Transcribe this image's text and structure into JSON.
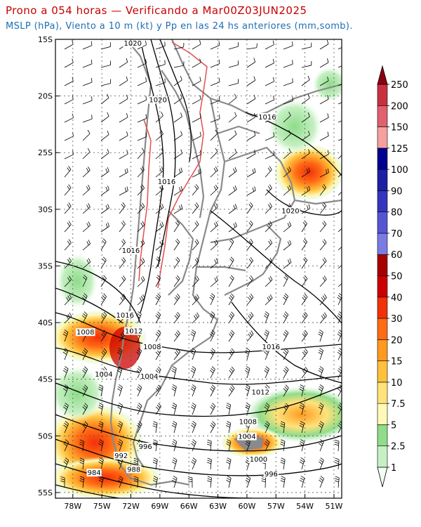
{
  "header": {
    "title": "Prono a 054 horas — Verificando a Mar00Z03JUN2025",
    "subtitle": "MSLP (hPa), Viento a 10 m (kt) y Pp en las 24 hs anteriores (mm,somb)."
  },
  "map": {
    "lon_ticks": [
      "78W",
      "75W",
      "72W",
      "69W",
      "66W",
      "63W",
      "60W",
      "57W",
      "54W",
      "51W"
    ],
    "lon_values": [
      -78,
      -75,
      -72,
      -69,
      -66,
      -63,
      -60,
      -57,
      -54,
      -51
    ],
    "lat_ticks": [
      "15S",
      "20S",
      "25S",
      "30S",
      "35S",
      "40S",
      "45S",
      "50S",
      "55S"
    ],
    "lat_values": [
      -15,
      -20,
      -25,
      -30,
      -35,
      -40,
      -45,
      -50,
      -55
    ],
    "lon_range": [
      -79.8,
      -50.2
    ],
    "lat_range": [
      -55.5,
      -15
    ],
    "grid": true,
    "isobar_labels": [
      {
        "text": "1020",
        "lon": -71.8,
        "lat": -15.5
      },
      {
        "text": "1020",
        "lon": -69.2,
        "lat": -20.5
      },
      {
        "text": "1016",
        "lon": -57.9,
        "lat": -22.0
      },
      {
        "text": "1016",
        "lon": -68.3,
        "lat": -27.7
      },
      {
        "text": "1020",
        "lon": -55.5,
        "lat": -30.3
      },
      {
        "text": "1016",
        "lon": -72.0,
        "lat": -33.8
      },
      {
        "text": "1016",
        "lon": -72.6,
        "lat": -39.5
      },
      {
        "text": "1012",
        "lon": -71.7,
        "lat": -40.9
      },
      {
        "text": "1008",
        "lon": -76.7,
        "lat": -41.0
      },
      {
        "text": "1008",
        "lon": -69.8,
        "lat": -42.3
      },
      {
        "text": "1016",
        "lon": -57.5,
        "lat": -42.3
      },
      {
        "text": "1004",
        "lon": -74.8,
        "lat": -44.7
      },
      {
        "text": "1004",
        "lon": -70.1,
        "lat": -44.9
      },
      {
        "text": "1012",
        "lon": -58.6,
        "lat": -46.3
      },
      {
        "text": "1008",
        "lon": -59.9,
        "lat": -48.9
      },
      {
        "text": "1004",
        "lon": -60.0,
        "lat": -50.2
      },
      {
        "text": "996",
        "lon": -70.5,
        "lat": -51.1
      },
      {
        "text": "1000",
        "lon": -58.8,
        "lat": -52.2
      },
      {
        "text": "992",
        "lon": -73.0,
        "lat": -51.9
      },
      {
        "text": "988",
        "lon": -71.7,
        "lat": -53.1
      },
      {
        "text": "984",
        "lon": -75.8,
        "lat": -53.4
      },
      {
        "text": "996",
        "lon": -57.5,
        "lat": -53.5
      }
    ]
  },
  "colorbar": {
    "levels": [
      "1",
      "2.5",
      "5",
      "7.5",
      "10",
      "15",
      "20",
      "30",
      "40",
      "50",
      "60",
      "70",
      "80",
      "90",
      "100",
      "125",
      "150",
      "200",
      "250"
    ],
    "colors": [
      "#f3fff2",
      "#c6f0c3",
      "#8fdc8a",
      "#fffab8",
      "#ffe27a",
      "#ffc03c",
      "#ff9a1e",
      "#ff6a14",
      "#f2300a",
      "#cc0000",
      "#a80000",
      "#7b7be6",
      "#5555d4",
      "#3535be",
      "#1e1ea5",
      "#000090",
      "#f6a0a0",
      "#e06070",
      "#c83040",
      "#8c0010"
    ]
  },
  "colors": {
    "title": "#c80000",
    "subtitle": "#1e6fb4",
    "coast": "#8a8a8a",
    "isobar": "#000000",
    "terrain_contour": "#e05050"
  }
}
